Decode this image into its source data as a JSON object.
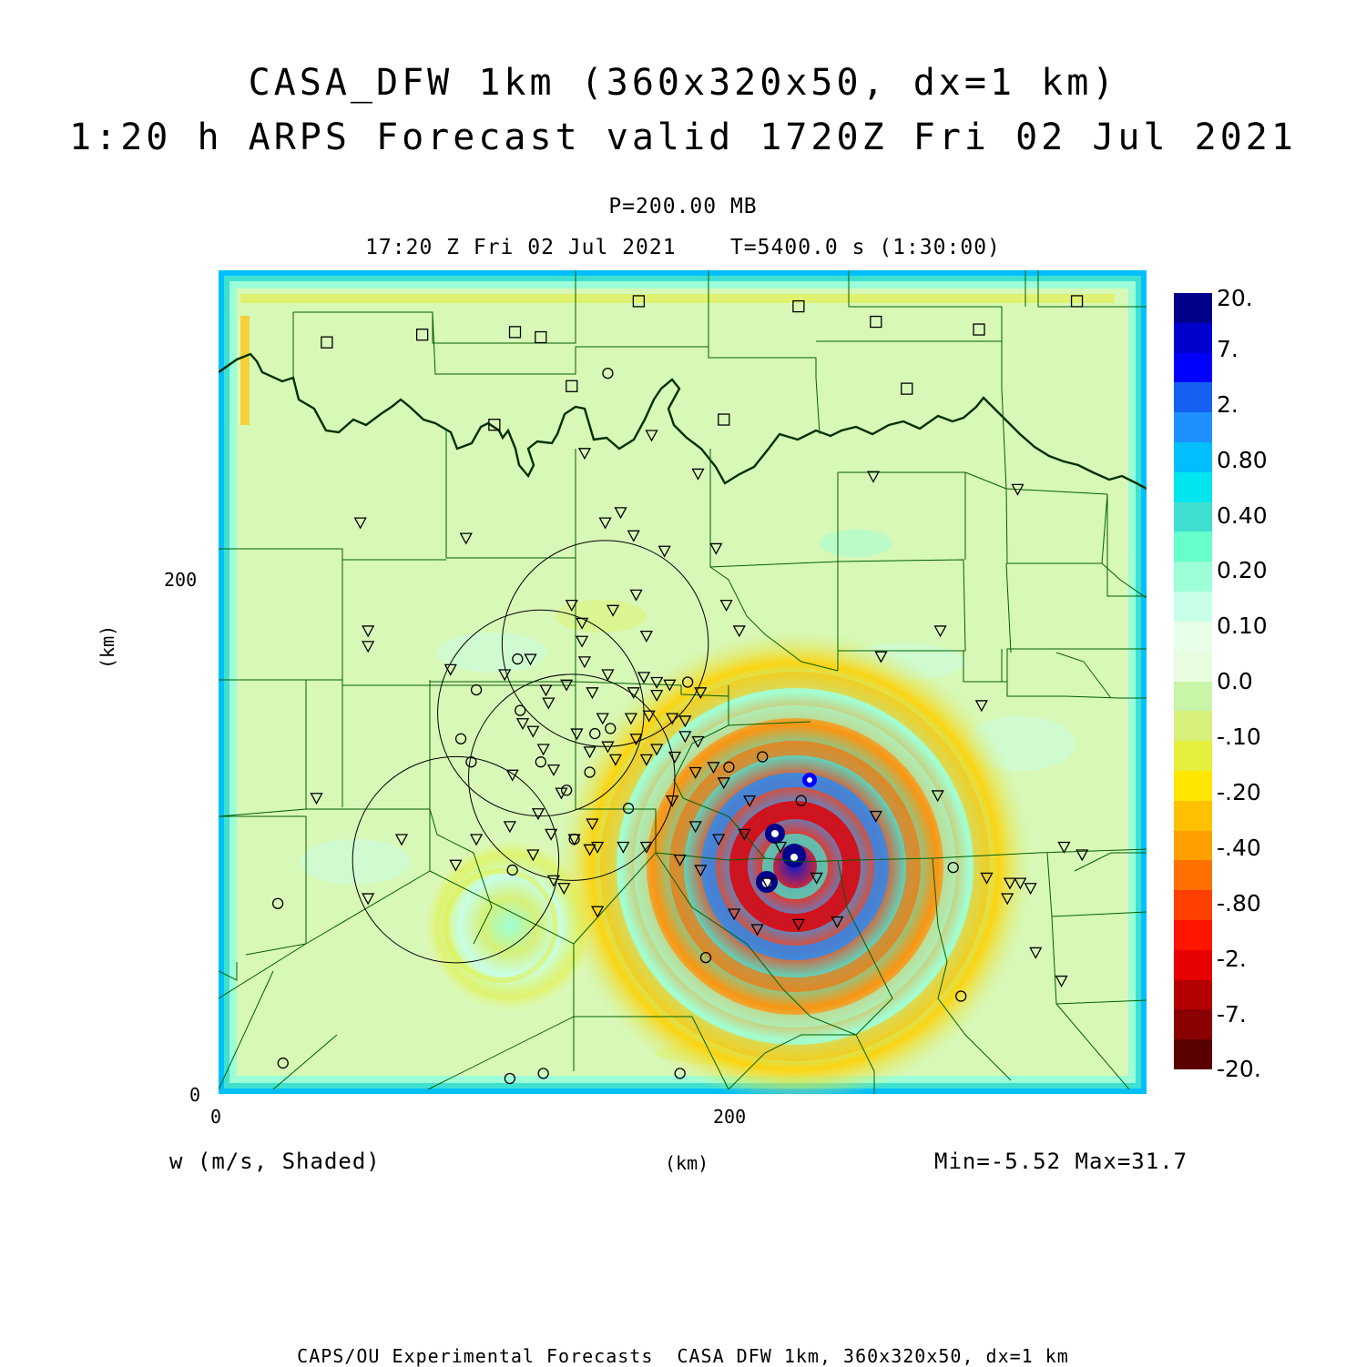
{
  "title": {
    "line1": "CASA_DFW 1km (360x320x50, dx=1 km)",
    "line2": "1:20 h ARPS Forecast valid 1720Z Fri 02 Jul 2021"
  },
  "level_label": "P=200.00 MB",
  "time_label": "17:20 Z Fri 02 Jul 2021    T=5400.0 s (1:30:00)",
  "field_label": "w (m/s, Shaded)",
  "x_axis_unit": "(km)",
  "y_axis_unit": "(km)",
  "minmax_label": "Min=-5.52 Max=31.7",
  "footer": "CAPS/OU Experimental Forecasts  CASA DFW 1km, 360x320x50, dx=1 km",
  "axes": {
    "x_range_km": [
      0,
      360
    ],
    "y_range_km": [
      0,
      320
    ],
    "x_ticks": [
      "0",
      "200"
    ],
    "y_ticks": [
      "0",
      "200"
    ]
  },
  "colorbar": {
    "labels": [
      "20.",
      "7.",
      "2.",
      "0.80",
      "0.40",
      "0.20",
      "0.10",
      "0.0",
      "-.10",
      "-.20",
      "-.40",
      "-.80",
      "-2.",
      "-7.",
      "-20."
    ],
    "colors": [
      "#00008b",
      "#0000cd",
      "#0000ff",
      "#1560f0",
      "#1e90ff",
      "#00bfff",
      "#00e5ee",
      "#40e0d0",
      "#66ffcc",
      "#9cffd8",
      "#c8ffe8",
      "#e6ffe6",
      "#e8fce0",
      "#c8f5a8",
      "#d6f07a",
      "#e4ef3e",
      "#ffe600",
      "#ffc000",
      "#ffa000",
      "#ff7000",
      "#ff4000",
      "#ff1500",
      "#e60000",
      "#b40000",
      "#8b0000",
      "#5a0000"
    ]
  },
  "chart_data": {
    "type": "contour-map",
    "field": "vertical velocity w",
    "units": "m/s",
    "min": -5.52,
    "max": 31.7,
    "x_range_km": [
      0,
      360
    ],
    "y_range_km": [
      0,
      320
    ],
    "storm_center_km": [
      223,
      91
    ],
    "updraft_cores_km": [
      [
        213,
        101
      ],
      [
        223,
        92
      ],
      [
        213,
        83
      ],
      [
        229,
        122
      ]
    ],
    "radar_range_rings_km": [
      [
        150,
        175,
        40
      ],
      [
        125,
        148,
        40
      ],
      [
        137,
        123,
        40
      ],
      [
        92,
        91,
        40
      ]
    ],
    "sites_square_km": [
      [
        42,
        292
      ],
      [
        79,
        295
      ],
      [
        115,
        296
      ],
      [
        125,
        294
      ],
      [
        163,
        308
      ],
      [
        225,
        306
      ],
      [
        255,
        300
      ],
      [
        295,
        297
      ],
      [
        333,
        308
      ],
      [
        137,
        275
      ],
      [
        107,
        260
      ],
      [
        196,
        262
      ],
      [
        267,
        274
      ]
    ],
    "sites_circle_km": [
      [
        23,
        74
      ],
      [
        116,
        169
      ],
      [
        100,
        157
      ],
      [
        94,
        138
      ],
      [
        98,
        129
      ],
      [
        117,
        149
      ],
      [
        152,
        142
      ],
      [
        125,
        129
      ],
      [
        135,
        118
      ],
      [
        144,
        125
      ],
      [
        146,
        140
      ],
      [
        198,
        127
      ],
      [
        182,
        160
      ],
      [
        159,
        111
      ],
      [
        211,
        131
      ],
      [
        226,
        114
      ],
      [
        138,
        99
      ],
      [
        114,
        87
      ],
      [
        189,
        53
      ],
      [
        285,
        88
      ],
      [
        151,
        280
      ],
      [
        25,
        12
      ],
      [
        113,
        6
      ],
      [
        126,
        8
      ],
      [
        179,
        8
      ],
      [
        288,
        38
      ]
    ],
    "sites_triangle_km": [
      [
        55,
        222
      ],
      [
        96,
        216
      ],
      [
        58,
        180
      ],
      [
        58,
        174
      ],
      [
        90,
        165
      ],
      [
        121,
        169
      ],
      [
        111,
        163
      ],
      [
        127,
        157
      ],
      [
        135,
        159
      ],
      [
        128,
        152
      ],
      [
        142,
        168
      ],
      [
        145,
        156
      ],
      [
        151,
        163
      ],
      [
        161,
        156
      ],
      [
        165,
        162
      ],
      [
        170,
        160
      ],
      [
        175,
        159
      ],
      [
        187,
        156
      ],
      [
        160,
        146
      ],
      [
        167,
        147
      ],
      [
        170,
        155
      ],
      [
        181,
        145
      ],
      [
        176,
        146
      ],
      [
        139,
        140
      ],
      [
        149,
        146
      ],
      [
        122,
        141
      ],
      [
        118,
        144
      ],
      [
        126,
        134
      ],
      [
        130,
        126
      ],
      [
        144,
        133
      ],
      [
        154,
        130
      ],
      [
        151,
        135
      ],
      [
        162,
        138
      ],
      [
        170,
        134
      ],
      [
        181,
        139
      ],
      [
        186,
        137
      ],
      [
        177,
        131
      ],
      [
        166,
        130
      ],
      [
        185,
        125
      ],
      [
        192,
        127
      ],
      [
        196,
        121
      ],
      [
        206,
        114
      ],
      [
        124,
        109
      ],
      [
        129,
        101
      ],
      [
        138,
        99
      ],
      [
        144,
        95
      ],
      [
        157,
        96
      ],
      [
        145,
        105
      ],
      [
        122,
        93
      ],
      [
        130,
        83
      ],
      [
        133,
        117
      ],
      [
        113,
        104
      ],
      [
        100,
        99
      ],
      [
        92,
        89
      ],
      [
        71,
        99
      ],
      [
        38,
        115
      ],
      [
        114,
        124
      ],
      [
        58,
        76
      ],
      [
        134,
        80
      ],
      [
        147,
        71
      ],
      [
        185,
        104
      ],
      [
        194,
        99
      ],
      [
        147,
        96
      ],
      [
        166,
        96
      ],
      [
        200,
        70
      ],
      [
        209,
        64
      ],
      [
        225,
        66
      ],
      [
        279,
        116
      ],
      [
        255,
        108
      ],
      [
        296,
        151
      ],
      [
        328,
        96
      ],
      [
        307,
        82
      ],
      [
        311,
        82
      ],
      [
        298,
        84
      ],
      [
        315,
        80
      ],
      [
        335,
        93
      ],
      [
        306,
        76
      ],
      [
        317,
        55
      ],
      [
        327,
        44
      ],
      [
        142,
        249
      ],
      [
        186,
        241
      ],
      [
        150,
        222
      ],
      [
        173,
        211
      ],
      [
        168,
        256
      ],
      [
        193,
        212
      ],
      [
        202,
        180
      ],
      [
        197,
        190
      ],
      [
        156,
        226
      ],
      [
        161,
        217
      ],
      [
        162,
        194
      ],
      [
        166,
        178
      ],
      [
        153,
        188
      ],
      [
        141,
        176
      ],
      [
        137,
        190
      ],
      [
        141,
        183
      ],
      [
        176,
        114
      ],
      [
        240,
        67
      ],
      [
        254,
        240
      ],
      [
        310,
        235
      ],
      [
        280,
        180
      ],
      [
        257,
        170
      ],
      [
        232,
        84
      ],
      [
        218,
        96
      ],
      [
        179,
        91
      ],
      [
        204,
        101
      ],
      [
        187,
        87
      ],
      [
        213,
        82
      ]
    ]
  }
}
